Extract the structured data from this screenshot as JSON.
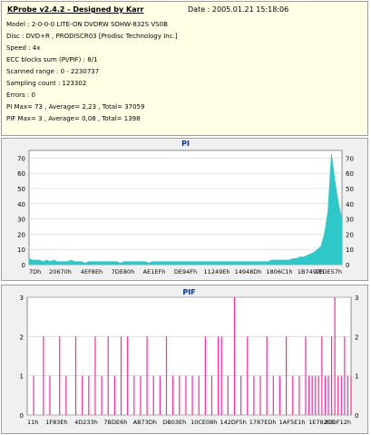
{
  "info": {
    "title": "KProbe v2.4.2 - Designed by Karr",
    "date": "Date : 2005.01.21 15:18:06",
    "lines": [
      "Model : 2-0-0-0 LITE-ON DVDRW SOHW-832S  VS0B",
      "Disc : DVD+R , PRODISCR03 [Prodisc Technology Inc.]",
      "Speed : 4x",
      "ECC blocks sum (PI/PIF) : 8/1",
      "Scanned range : 0 - 2230737",
      "Sampling count : 123302",
      "Errors : 0",
      "PI Max= 73 , Average= 2,23 , Total= 37059",
      "PIF Max= 3 , Average= 0,08 , Total= 1398"
    ]
  },
  "colors": {
    "pi": "#2ec8c8",
    "pif": "#ff2a9e",
    "plot_bg": "#ffffff",
    "panel_bg": "#f0f0f0",
    "title": "#0033aa"
  },
  "chart_data": [
    {
      "type": "area",
      "title": "PI",
      "xlabel": "",
      "ylabel": "",
      "ylim": [
        0,
        75
      ],
      "yticks": [
        0,
        10,
        20,
        30,
        40,
        50,
        60,
        70
      ],
      "xtick_labels": [
        "7Dh",
        "20670h",
        "4EF8Eh",
        "7DE80h",
        "AE1EFh",
        "DE94Fh",
        "11249Eh",
        "14948Dh",
        "1806C1h",
        "1B7497h",
        "1EDE57h"
      ],
      "series": [
        {
          "values": [
            4,
            3,
            3,
            3,
            2,
            3,
            2,
            3,
            2,
            2,
            2,
            2,
            3,
            2,
            2,
            2,
            1,
            2,
            2,
            2,
            2,
            2,
            2,
            2,
            2,
            2,
            1,
            2,
            2,
            2,
            2,
            2,
            2,
            2,
            1,
            2,
            2,
            2,
            2,
            2,
            2,
            2,
            2,
            2,
            2,
            2,
            2,
            2,
            2,
            2,
            2,
            2,
            2,
            2,
            2,
            2,
            2,
            2,
            2,
            2,
            2,
            2,
            2,
            2,
            2,
            2,
            2,
            2,
            2,
            3,
            3,
            3,
            3,
            3,
            3,
            4,
            4,
            5,
            5,
            6,
            7,
            8,
            10,
            12,
            20,
            35,
            73,
            55,
            40,
            30
          ]
        }
      ]
    },
    {
      "type": "bar",
      "title": "PIF",
      "xlabel": "",
      "ylabel": "",
      "ylim": [
        0,
        3
      ],
      "yticks": [
        0,
        1,
        2,
        3
      ],
      "xtick_labels": [
        "11h",
        "1F83Eh",
        "4D233h",
        "7BDE6h",
        "AB73Dh",
        "DB03Eh",
        "10CE08h",
        "142DF5h",
        "1787EDh",
        "1AF5E1h",
        "1E782Eh",
        "21DF12h"
      ],
      "series": [
        {
          "points": [
            [
              0.02,
              1
            ],
            [
              0.05,
              2
            ],
            [
              0.07,
              1
            ],
            [
              0.1,
              2
            ],
            [
              0.12,
              1
            ],
            [
              0.15,
              2
            ],
            [
              0.17,
              1
            ],
            [
              0.19,
              1
            ],
            [
              0.21,
              2
            ],
            [
              0.23,
              1
            ],
            [
              0.25,
              2
            ],
            [
              0.27,
              1
            ],
            [
              0.29,
              2
            ],
            [
              0.31,
              2
            ],
            [
              0.33,
              1
            ],
            [
              0.35,
              1
            ],
            [
              0.37,
              2
            ],
            [
              0.39,
              1
            ],
            [
              0.41,
              1
            ],
            [
              0.43,
              2
            ],
            [
              0.45,
              1
            ],
            [
              0.47,
              1
            ],
            [
              0.49,
              1
            ],
            [
              0.51,
              1
            ],
            [
              0.53,
              1
            ],
            [
              0.55,
              2
            ],
            [
              0.57,
              1
            ],
            [
              0.59,
              2
            ],
            [
              0.6,
              2
            ],
            [
              0.62,
              1
            ],
            [
              0.64,
              3
            ],
            [
              0.66,
              1
            ],
            [
              0.68,
              2
            ],
            [
              0.7,
              1
            ],
            [
              0.72,
              1
            ],
            [
              0.74,
              2
            ],
            [
              0.76,
              1
            ],
            [
              0.78,
              1
            ],
            [
              0.8,
              2
            ],
            [
              0.82,
              1
            ],
            [
              0.84,
              1
            ],
            [
              0.86,
              2
            ],
            [
              0.87,
              1
            ],
            [
              0.88,
              1
            ],
            [
              0.89,
              1
            ],
            [
              0.9,
              1
            ],
            [
              0.91,
              2
            ],
            [
              0.92,
              1
            ],
            [
              0.93,
              1
            ],
            [
              0.94,
              2
            ],
            [
              0.95,
              3
            ],
            [
              0.96,
              1
            ],
            [
              0.97,
              1
            ],
            [
              0.98,
              2
            ],
            [
              0.99,
              1
            ],
            [
              1.0,
              1
            ]
          ]
        }
      ]
    }
  ]
}
